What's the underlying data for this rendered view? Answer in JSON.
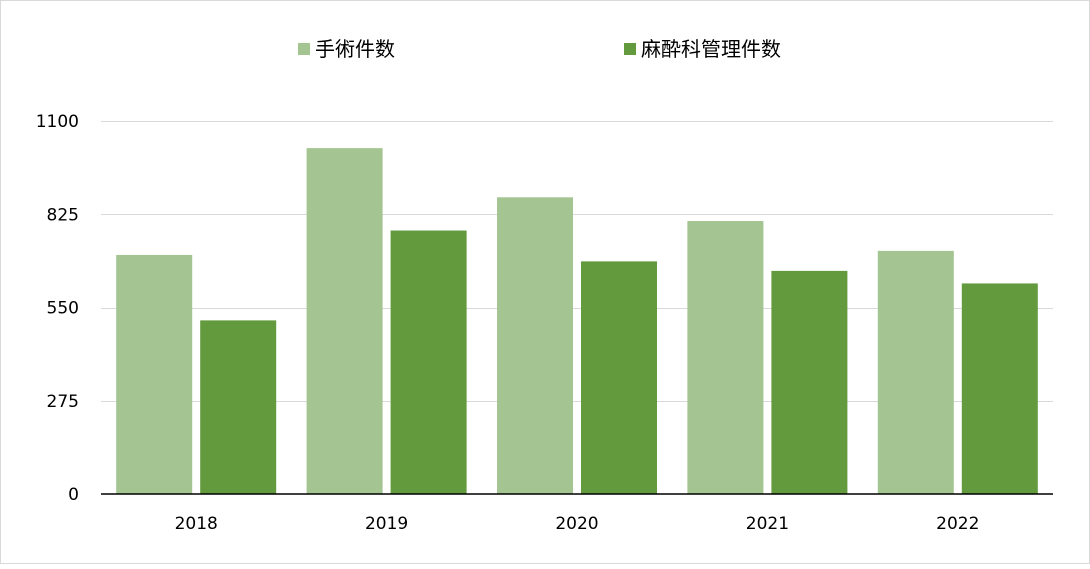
{
  "chart_data": {
    "type": "bar",
    "categories": [
      "2018",
      "2019",
      "2020",
      "2021",
      "2022"
    ],
    "series": [
      {
        "name": "手術件数",
        "values": [
          705,
          1020,
          875,
          805,
          717
        ],
        "color": "#a4c591"
      },
      {
        "name": "麻酔科管理件数",
        "values": [
          512,
          777,
          686,
          658,
          621
        ],
        "color": "#629a3d"
      }
    ],
    "ylim": [
      0,
      1100
    ],
    "yticks": [
      0,
      275,
      550,
      825,
      1100
    ],
    "ytick_labels": [
      "0",
      "275",
      "550",
      "825",
      "1100"
    ],
    "grid": true,
    "legend": "top-center",
    "title": "",
    "xlabel": "",
    "ylabel": ""
  }
}
